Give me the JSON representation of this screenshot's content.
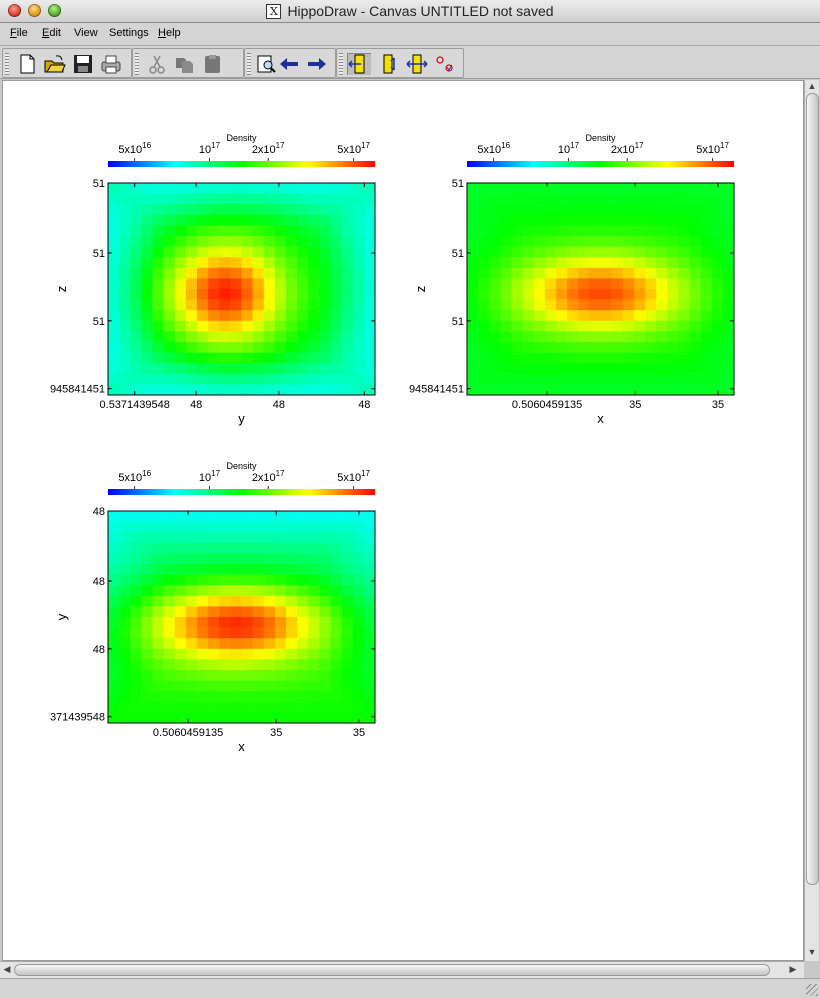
{
  "window": {
    "title": "HippoDraw - Canvas UNTITLED   not saved",
    "x_badge": "X"
  },
  "menu": {
    "items": [
      {
        "label": "File",
        "u": "F",
        "rest": "ile"
      },
      {
        "label": "Edit",
        "u": "E",
        "rest": "dit"
      },
      {
        "label": "View",
        "u": "",
        "rest": "View"
      },
      {
        "label": "Settings",
        "u": "",
        "rest": "Settings"
      },
      {
        "label": "Help",
        "u": "H",
        "rest": "elp"
      }
    ]
  },
  "toolbar": {
    "buttons": [
      {
        "name": "new-document-icon"
      },
      {
        "name": "open-folder-icon"
      },
      {
        "name": "save-icon"
      },
      {
        "name": "print-icon"
      },
      {
        "name": "cut-icon"
      },
      {
        "name": "copy-icon"
      },
      {
        "name": "paste-icon"
      },
      {
        "name": "inspector-icon"
      },
      {
        "name": "back-arrow-icon"
      },
      {
        "name": "forward-arrow-icon"
      },
      {
        "name": "pick-mode-icon"
      },
      {
        "name": "zoom-vertical-icon"
      },
      {
        "name": "zoom-horizontal-icon"
      },
      {
        "name": "cut-selection-icon"
      }
    ]
  },
  "colors": {
    "colorbar": [
      "#0000ff",
      "#00ffff",
      "#00ff00",
      "#ffff00",
      "#ff0000"
    ]
  },
  "plots": [
    {
      "id": "plot-zy",
      "colorbar": {
        "title": "Density",
        "ticks": [
          {
            "base": "5x10",
            "exp": "16",
            "frac": 0.1
          },
          {
            "base": "10",
            "exp": "17",
            "frac": 0.38
          },
          {
            "base": "2x10",
            "exp": "17",
            "frac": 0.6
          },
          {
            "base": "5x10",
            "exp": "17",
            "frac": 0.92
          }
        ]
      },
      "xlabel": "y",
      "ylabel": "z",
      "xticks": [
        "0.5371439548",
        "48",
        "48",
        "48"
      ],
      "yticks": [
        "51",
        "51",
        "51",
        "945841451"
      ],
      "peak": {
        "cx": 0.44,
        "cy": 0.52,
        "sx": 0.2,
        "sy": 0.22,
        "amp": 0.97
      },
      "ring": {
        "r": 0.55,
        "w": 0.2,
        "amp": 0.12
      },
      "floor": {
        "base": 0.5,
        "slope": 0.0,
        "corner_drop": 0.55
      }
    },
    {
      "id": "plot-zx",
      "colorbar": {
        "title": "Density",
        "ticks": [
          {
            "base": "5x10",
            "exp": "16",
            "frac": 0.1
          },
          {
            "base": "10",
            "exp": "17",
            "frac": 0.38
          },
          {
            "base": "2x10",
            "exp": "17",
            "frac": 0.6
          },
          {
            "base": "5x10",
            "exp": "17",
            "frac": 0.92
          }
        ]
      },
      "xlabel": "x",
      "ylabel": "z",
      "xticks": [
        "0.5060459135",
        "35",
        "35"
      ],
      "yticks": [
        "51",
        "51",
        "51",
        "945841451"
      ],
      "peak": {
        "cx": 0.5,
        "cy": 0.52,
        "sx": 0.3,
        "sy": 0.18,
        "amp": 0.93
      },
      "ring": {
        "r": 0.0,
        "w": 0.1,
        "amp": 0.0
      },
      "floor": {
        "base": 0.5,
        "slope": 0.0,
        "corner_drop": 0.2
      }
    },
    {
      "id": "plot-yx",
      "colorbar": {
        "title": "Density",
        "ticks": [
          {
            "base": "5x10",
            "exp": "16",
            "frac": 0.1
          },
          {
            "base": "10",
            "exp": "17",
            "frac": 0.38
          },
          {
            "base": "2x10",
            "exp": "17",
            "frac": 0.6
          },
          {
            "base": "5x10",
            "exp": "17",
            "frac": 0.92
          }
        ]
      },
      "xlabel": "x",
      "ylabel": "y",
      "xticks": [
        "0.5060459135",
        "35",
        "35"
      ],
      "yticks": [
        "48",
        "48",
        "48",
        "371439548"
      ],
      "peak": {
        "cx": 0.48,
        "cy": 0.53,
        "sx": 0.32,
        "sy": 0.18,
        "amp": 0.95
      },
      "ring": {
        "r": 0.0,
        "w": 0.1,
        "amp": 0.0
      },
      "floor": {
        "base": 0.45,
        "slope": 0.25,
        "corner_drop": 0.35
      }
    }
  ]
}
